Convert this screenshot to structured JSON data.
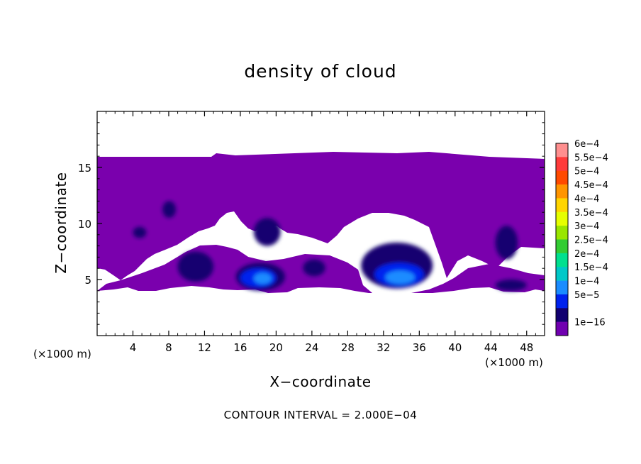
{
  "chart_data": {
    "type": "heatmap",
    "title": "density of cloud",
    "xlabel": "X−coordinate",
    "ylabel": "Z−coordinate",
    "x_unit": "(×1000 m)",
    "xlim": [
      0,
      50
    ],
    "ylim": [
      0,
      20
    ],
    "x_ticks": [
      4,
      8,
      12,
      16,
      20,
      24,
      28,
      32,
      36,
      40,
      44,
      48
    ],
    "y_ticks": [
      5,
      10,
      15
    ],
    "footer": "CONTOUR INTERVAL = 2.000E−04",
    "colorbar": {
      "labels": [
        "6e−4",
        "5.5e−4",
        "5e−4",
        "4.5e−4",
        "4e−4",
        "3.5e−4",
        "3e−4",
        "2.5e−4",
        "2e−4",
        "1.5e−4",
        "1e−4",
        "5e−5",
        "1e−16"
      ],
      "colors": [
        "#ff8f8f",
        "#ff3b3b",
        "#ff4a00",
        "#ff9500",
        "#ffd500",
        "#e6ff00",
        "#99e600",
        "#33cc33",
        "#00e08f",
        "#00c8c8",
        "#1a8cff",
        "#0022ee",
        "#120070",
        "#7000b0"
      ]
    },
    "cloud_base_color": "#7a00ad",
    "regions": [
      {
        "level": "5e−5",
        "x": [
          15.5,
          21
        ],
        "z": [
          4,
          6.5
        ]
      },
      {
        "level": "1e−4",
        "x": [
          16,
          20
        ],
        "z": [
          4.3,
          6
        ]
      },
      {
        "level": "1.5e−4",
        "x": [
          17.5,
          19.5
        ],
        "z": [
          4.6,
          5.6
        ]
      },
      {
        "level": "5e−5",
        "x": [
          29.5,
          37.5
        ],
        "z": [
          4.2,
          8.3
        ]
      },
      {
        "level": "1e−4",
        "x": [
          31,
          36.5
        ],
        "z": [
          4.4,
          6.5
        ]
      },
      {
        "level": "1.5e−4",
        "x": [
          32.2,
          35.5
        ],
        "z": [
          4.6,
          5.8
        ]
      },
      {
        "level": "5e−5",
        "x": [
          17.5,
          20.5
        ],
        "z": [
          8,
          10.5
        ]
      },
      {
        "level": "5e−5",
        "x": [
          9,
          13
        ],
        "z": [
          4.8,
          7.5
        ]
      },
      {
        "level": "5e−5",
        "x": [
          44.5,
          48
        ],
        "z": [
          4,
          5
        ]
      },
      {
        "level": "5e−5",
        "x": [
          44.5,
          47
        ],
        "z": [
          6.8,
          9.8
        ]
      },
      {
        "level": "5e−5",
        "x": [
          7.3,
          8.8
        ],
        "z": [
          10.5,
          12
        ]
      },
      {
        "level": "5e−5",
        "x": [
          23,
          25.5
        ],
        "z": [
          5.3,
          6.8
        ]
      },
      {
        "level": "5e−5",
        "x": [
          4,
          5.5
        ],
        "z": [
          8.7,
          9.7
        ]
      }
    ]
  }
}
